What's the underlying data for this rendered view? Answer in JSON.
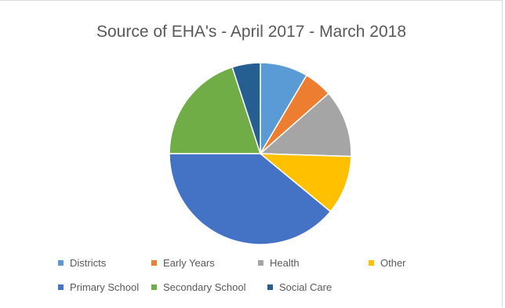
{
  "chart_data": {
    "type": "pie",
    "title": "Source of EHA's - April 2017 - March 2018",
    "categories": [
      "Districts",
      "Early Years",
      "Health",
      "Other",
      "Primary School",
      "Secondary School",
      "Social Care"
    ],
    "values": [
      8.5,
      5,
      12,
      10.5,
      39,
      20,
      5
    ],
    "colors": [
      "#5b9bd5",
      "#ed7d31",
      "#a5a5a5",
      "#ffc000",
      "#4472c4",
      "#70ad47",
      "#255e91"
    ],
    "legend_position": "bottom"
  }
}
